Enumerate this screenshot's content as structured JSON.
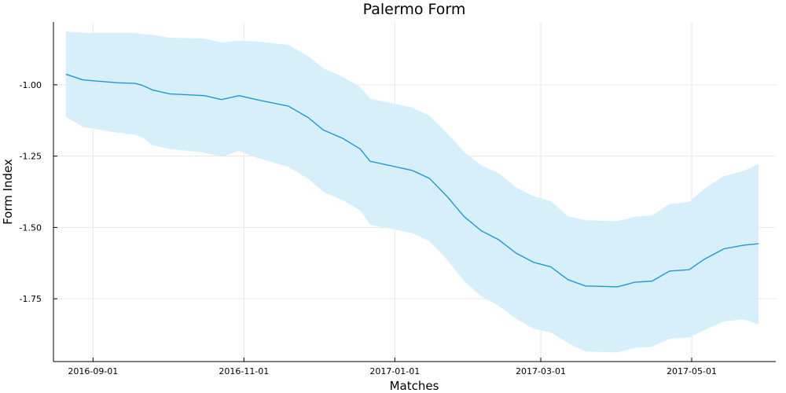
{
  "chart_data": {
    "type": "line",
    "title": "Palermo Form",
    "xlabel": "Matches",
    "ylabel": "Form Index",
    "xlim": [
      "2016-08-16",
      "2017-06-04"
    ],
    "ylim": [
      -1.97,
      -0.78
    ],
    "x_ticks": [
      "2016-09-01",
      "2016-11-01",
      "2017-01-01",
      "2017-03-01",
      "2017-05-01"
    ],
    "y_ticks": [
      -1.0,
      -1.25,
      -1.5,
      -1.75
    ],
    "y_tick_labels": [
      "-1.00",
      "-1.25",
      "-1.50",
      "-1.75"
    ],
    "grid": true,
    "colors": {
      "line": "#1b9ad6",
      "band": "#d7effb",
      "grid": "#e6e6e6",
      "axis": "#000000"
    },
    "series": [
      {
        "x": [
          "2016-08-21",
          "2016-08-28",
          "2016-09-11",
          "2016-09-18",
          "2016-09-21",
          "2016-09-25",
          "2016-10-02",
          "2016-10-16",
          "2016-10-23",
          "2016-10-30",
          "2016-11-06",
          "2016-11-19",
          "2016-11-27",
          "2016-12-03",
          "2016-12-11",
          "2016-12-18",
          "2016-12-22",
          "2017-01-08",
          "2017-01-15",
          "2017-01-22",
          "2017-01-29",
          "2017-02-05",
          "2017-02-12",
          "2017-02-19",
          "2017-02-26",
          "2017-03-05",
          "2017-03-12",
          "2017-03-19",
          "2017-04-01",
          "2017-04-08",
          "2017-04-15",
          "2017-04-22",
          "2017-04-30",
          "2017-05-06",
          "2017-05-14",
          "2017-05-22",
          "2017-05-28"
        ],
        "values": [
          -0.963,
          -0.983,
          -0.993,
          -0.995,
          -1.002,
          -1.018,
          -1.032,
          -1.038,
          -1.052,
          -1.038,
          -1.052,
          -1.075,
          -1.115,
          -1.158,
          -1.188,
          -1.225,
          -1.268,
          -1.3,
          -1.328,
          -1.39,
          -1.462,
          -1.512,
          -1.543,
          -1.59,
          -1.622,
          -1.638,
          -1.683,
          -1.705,
          -1.708,
          -1.692,
          -1.688,
          -1.653,
          -1.648,
          -1.612,
          -1.575,
          -1.562,
          -1.557
        ],
        "lower": [
          -1.113,
          -1.148,
          -1.168,
          -1.175,
          -1.185,
          -1.212,
          -1.225,
          -1.238,
          -1.252,
          -1.232,
          -1.255,
          -1.288,
          -1.33,
          -1.375,
          -1.405,
          -1.44,
          -1.49,
          -1.52,
          -1.548,
          -1.612,
          -1.688,
          -1.742,
          -1.775,
          -1.82,
          -1.855,
          -1.868,
          -1.905,
          -1.935,
          -1.938,
          -1.922,
          -1.918,
          -1.89,
          -1.885,
          -1.86,
          -1.83,
          -1.822,
          -1.84
        ],
        "upper": [
          -0.813,
          -0.818,
          -0.818,
          -0.818,
          -0.822,
          -0.825,
          -0.835,
          -0.838,
          -0.852,
          -0.845,
          -0.848,
          -0.86,
          -0.9,
          -0.942,
          -0.972,
          -1.008,
          -1.048,
          -1.08,
          -1.108,
          -1.168,
          -1.235,
          -1.282,
          -1.31,
          -1.36,
          -1.39,
          -1.408,
          -1.46,
          -1.475,
          -1.478,
          -1.462,
          -1.458,
          -1.418,
          -1.41,
          -1.365,
          -1.32,
          -1.302,
          -1.278
        ]
      }
    ]
  }
}
